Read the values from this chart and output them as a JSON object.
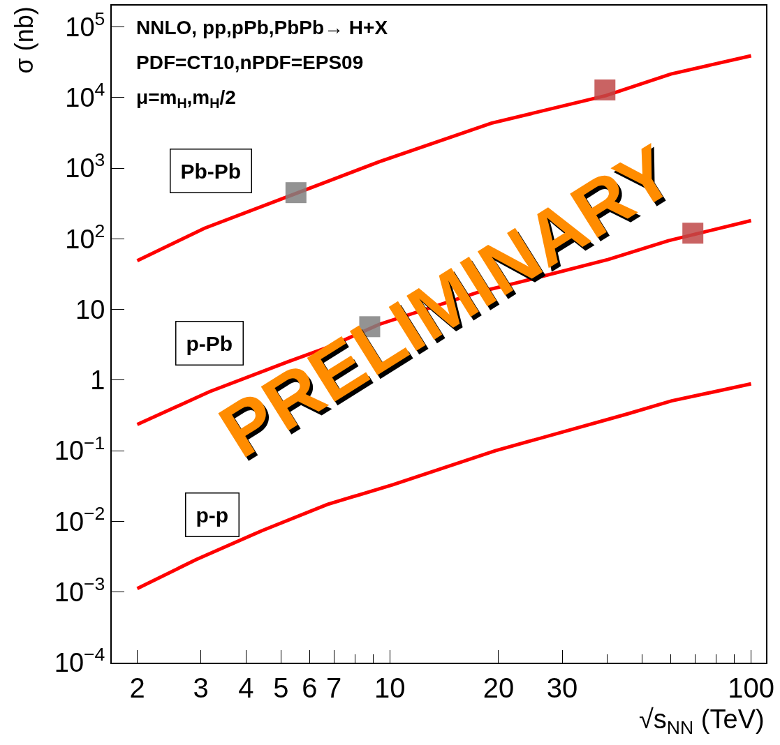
{
  "chart_data": {
    "type": "line",
    "xlabel": "√s$_{NN}$ (TeV)",
    "ylabel": "σ (nb)",
    "log": "xy",
    "xlim": [
      1.7,
      110
    ],
    "ylim": [
      0.0001,
      200000
    ],
    "xticks": [
      2,
      3,
      4,
      5,
      6,
      7,
      {
        "value": 8,
        "label": null
      },
      {
        "value": 9,
        "label": null
      },
      10,
      20,
      30,
      {
        "value": 40,
        "label": null
      },
      {
        "value": 50,
        "label": null
      },
      {
        "value": 60,
        "label": null
      },
      {
        "value": 70,
        "label": null
      },
      {
        "value": 80,
        "label": null
      },
      {
        "value": 90,
        "label": null
      },
      100
    ],
    "yticks": [
      {
        "value": 0.0001,
        "label": "10$^{−4}$"
      },
      {
        "value": 0.001,
        "label": "10$^{−3}$"
      },
      {
        "value": 0.01,
        "label": "10$^{−2}$"
      },
      {
        "value": 0.1,
        "label": "10$^{−1}$"
      },
      1,
      10,
      {
        "value": 100,
        "label": "10$^{2}$"
      },
      {
        "value": 1000,
        "label": "10$^{3}$"
      },
      {
        "value": 10000,
        "label": "10$^{4}$"
      },
      {
        "value": 100000,
        "label": "10$^{5}$"
      }
    ],
    "series": [
      {
        "color": "#ff0000",
        "marker": "none",
        "line_style": "solid",
        "x": [
          2,
          3.07,
          5.53,
          9.35,
          19.1,
          39.6,
          60,
          100
        ],
        "values": [
          49,
          141,
          443,
          1230,
          4330,
          10600,
          21500,
          38900
        ]
      },
      {
        "color": "#ff0000",
        "marker": "none",
        "line_style": "solid",
        "x": [
          2,
          3.17,
          5.24,
          6.8,
          9.35,
          17.7,
          22.3,
          40.3,
          59,
          100
        ],
        "values": [
          0.235,
          0.685,
          1.83,
          2.96,
          6.15,
          17.7,
          23.6,
          51,
          94,
          181
        ]
      },
      {
        "color": "#ff0000",
        "marker": "none",
        "line_style": "solid",
        "x": [
          2,
          2.91,
          4.43,
          6.72,
          10.2,
          19.6,
          45.4,
          60.3,
          100
        ],
        "values": [
          0.00112,
          0.00288,
          0.0074,
          0.0174,
          0.033,
          0.1,
          0.331,
          0.508,
          0.884
        ]
      },
      {
        "type": "scatter",
        "color": "#808080",
        "marker": "square",
        "x": [
          5.5,
          8.8
        ],
        "values": [
          450,
          5.7
        ]
      },
      {
        "type": "scatter",
        "color": "#c04848",
        "marker": "square",
        "x": [
          39.4,
          69
        ],
        "values": [
          12800,
          120
        ]
      }
    ],
    "annotations": [
      "NNLO, pp,pPb,PbPb→ H+X\nPDF=CT10,nPDF=EPS09\nμ=m$_{H}$,m$_{H}$/2",
      "PRELIMINARY",
      "Pb-Pb",
      "p-Pb",
      "p-p"
    ]
  }
}
